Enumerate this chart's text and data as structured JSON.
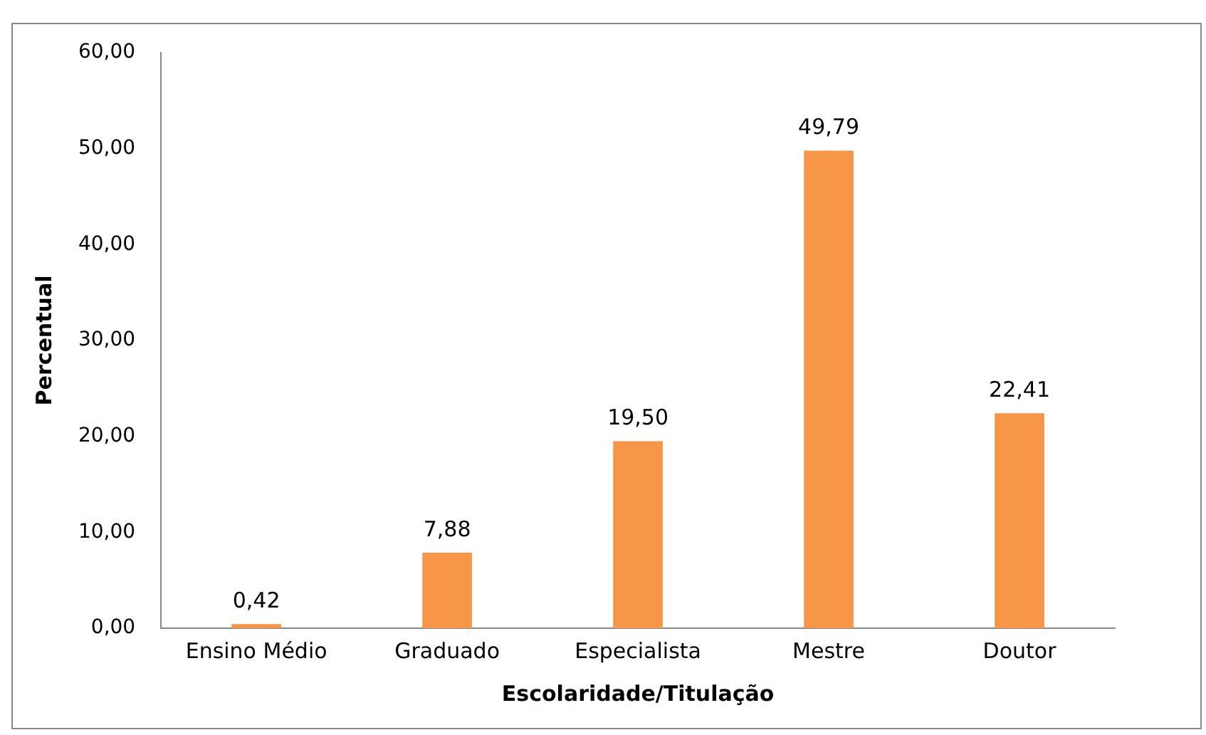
{
  "chart_data": {
    "type": "bar",
    "xlabel": "Escolaridade/Titulação",
    "ylabel": "Percentual",
    "categories": [
      "Ensino Médio",
      "Graduado",
      "Especialista",
      "Mestre",
      "Doutor"
    ],
    "values": [
      0.42,
      7.88,
      19.5,
      49.79,
      22.41
    ],
    "value_labels": [
      "0,42",
      "7,88",
      "19,50",
      "49,79",
      "22,41"
    ],
    "color": "#f79646",
    "ylim": [
      0,
      60
    ],
    "yticks": [
      {
        "value": 0,
        "label": "0,00"
      },
      {
        "value": 10,
        "label": "10,00"
      },
      {
        "value": 20,
        "label": "20,00"
      },
      {
        "value": 30,
        "label": "30,00"
      },
      {
        "value": 40,
        "label": "40,00"
      },
      {
        "value": 50,
        "label": "50,00"
      },
      {
        "value": 60,
        "label": "60,00"
      }
    ],
    "grid": false,
    "legend": false
  }
}
